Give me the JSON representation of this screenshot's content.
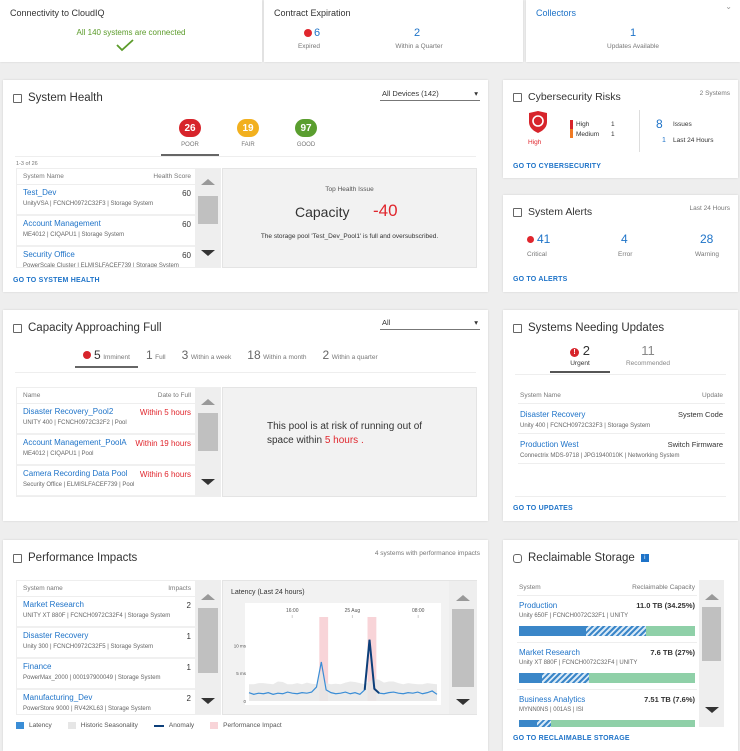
{
  "connectivity": {
    "title": "Connectivity to CloudIQ",
    "message": "All 140 systems are connected",
    "icon": "check-icon"
  },
  "contract": {
    "title": "Contract Expiration",
    "expired_count": "6",
    "expired_label": "Expired",
    "quarter_count": "2",
    "quarter_label": "Within a Quarter"
  },
  "collectors": {
    "title": "Collectors",
    "count": "1",
    "label": "Updates Available"
  },
  "health": {
    "title": "System Health",
    "filter": "All Devices (142)",
    "tabs": [
      {
        "count": "26",
        "label": "POOR",
        "color": "#d7242b"
      },
      {
        "count": "19",
        "label": "FAIR",
        "color": "#f2b01e"
      },
      {
        "count": "97",
        "label": "GOOD",
        "color": "#5a9e2f"
      }
    ],
    "range": "1-3 of 26",
    "col_name": "System Name",
    "col_score": "Health Score",
    "rows": [
      {
        "name": "Test_Dev",
        "sub": "UnityVSA | FCNCH0972C32F3 | Storage System",
        "score": "60"
      },
      {
        "name": "Account Management",
        "sub": "ME4012 | CIQAPU1 | Storage System",
        "score": "60"
      },
      {
        "name": "Security Office",
        "sub": "PowerScale Cluster | ELMISLFACEF739 | Storage System",
        "score": "60"
      }
    ],
    "issue_label": "Top Health Issue",
    "issue_name": "Capacity",
    "issue_score": "-40",
    "issue_desc": "The storage pool 'Test_Dev_Pool1' is full and oversubscribed.",
    "link": "GO TO SYSTEM HEALTH"
  },
  "cyber": {
    "title": "Cybersecurity Risks",
    "systems": "2 Systems",
    "level": "High",
    "high_label": "High",
    "high_count": "1",
    "medium_label": "Medium",
    "medium_count": "1",
    "issues_count": "8",
    "issues_label": "Issues",
    "last_count": "1",
    "last_label": "Last 24 Hours",
    "link": "GO TO CYBERSECURITY"
  },
  "alerts": {
    "title": "System Alerts",
    "period": "Last 24 Hours",
    "critical": "41",
    "critical_label": "Critical",
    "error": "4",
    "error_label": "Error",
    "warning": "28",
    "warning_label": "Warning",
    "link": "GO TO ALERTS"
  },
  "capacity": {
    "title": "Capacity Approaching Full",
    "filter": "All",
    "tabs": [
      {
        "count": "5",
        "label": "Imminent"
      },
      {
        "count": "1",
        "label": "Full"
      },
      {
        "count": "3",
        "label": "Within a week"
      },
      {
        "count": "18",
        "label": "Within a month"
      },
      {
        "count": "2",
        "label": "Within a quarter"
      }
    ],
    "col_name": "Name",
    "col_date": "Date to Full",
    "rows": [
      {
        "name": "Disaster Recovery_Pool2",
        "sub": "UNITY 400 | FCNCH0972C32F2 | Pool",
        "date": "Within 5 hours"
      },
      {
        "name": "Account Management_PoolA",
        "sub": "ME4012 | CIQAPU1 | Pool",
        "date": "Within 19 hours"
      },
      {
        "name": "Camera Recording Data Pool",
        "sub": "Security Office | ELMISLFACEF739 | Pool",
        "date": "Within 6 hours"
      }
    ],
    "msg_pre": "This pool is at risk of running out of space within",
    "msg_hl": "5 hours",
    "msg_post": "."
  },
  "updates": {
    "title": "Systems Needing Updates",
    "urgent_count": "2",
    "urgent_label": "Urgent",
    "rec_count": "11",
    "rec_label": "Recommended",
    "col_name": "System Name",
    "col_update": "Update",
    "rows": [
      {
        "name": "Disaster Recovery",
        "sub": "Unity 400 | FCNCH0972C32F3 | Storage System",
        "update": "System Code"
      },
      {
        "name": "Production West",
        "sub": "Connectrix MDS-9718 | JPG1940010K | Networking System",
        "update": "Switch Firmware"
      }
    ],
    "link": "GO TO UPDATES"
  },
  "perf": {
    "title": "Performance Impacts",
    "summary": "4 systems with performance impacts",
    "col_name": "System name",
    "col_impacts": "Impacts",
    "rows": [
      {
        "name": "Market Research",
        "sub": "UNITY XT 880F | FCNCH0972C32F4 | Storage System",
        "impacts": "2"
      },
      {
        "name": "Disaster Recovery",
        "sub": "Unity 300 | FCNCH0972C32F5 | Storage System",
        "impacts": "1"
      },
      {
        "name": "Finance",
        "sub": "PowerMax_2000 | 000197900049 | Storage System",
        "impacts": "1"
      },
      {
        "name": "Manufacturing_Dev",
        "sub": "PowerStore 9000 | RV42KL63 | Storage System",
        "impacts": "2"
      }
    ],
    "legend": [
      {
        "label": "Latency",
        "color": "#3a8dd6"
      },
      {
        "label": "Historic Seasonality",
        "color": "#e6e6e6"
      },
      {
        "label": "Anomaly",
        "color": "#0d3f7a"
      },
      {
        "label": "Performance Impact",
        "color": "#f8d4d8"
      }
    ]
  },
  "chart_data": {
    "type": "line",
    "title": "Latency (Last 24 hours)",
    "x_ticks": [
      "16:00",
      "25 Aug",
      "08:00"
    ],
    "y_ticks": [
      "0",
      "5 ms",
      "10 ms"
    ],
    "ylim": [
      0,
      14
    ],
    "grid": false,
    "legend_placement": "bottom",
    "series": [
      {
        "name": "Latency",
        "values": [
          1.5,
          1.2,
          1.4,
          1.3,
          1.5,
          1.2,
          1.4,
          1.3,
          1.6,
          1.4,
          1.3,
          1.5,
          1.4,
          1.6,
          2.5,
          7,
          2,
          1.5,
          1.3,
          1.4,
          1.6,
          1.3,
          1.5,
          1.2,
          2,
          11,
          2.2,
          1.4,
          1.3,
          1.5,
          1.6,
          1.4,
          1.3,
          1.5,
          1.4,
          1.6,
          1.3,
          1.5,
          1.8,
          1.2
        ]
      },
      {
        "name": "Historic Seasonality",
        "values": [
          3,
          3,
          3.2,
          3.2,
          3.1,
          3,
          3.5,
          3.4,
          3,
          3,
          3.2,
          3,
          3.3,
          3.1,
          3,
          5.5,
          3.2,
          3,
          3.1,
          3,
          3.3,
          3.5,
          3.4,
          3.2,
          3,
          3.5,
          4,
          3.8,
          3.3,
          3.5,
          3.5,
          3.2,
          3,
          3.2,
          3.1,
          3,
          3,
          3.2,
          3.1,
          3
        ]
      }
    ],
    "impact_windows": [
      [
        15,
        16
      ],
      [
        25,
        26
      ]
    ]
  },
  "reclaim": {
    "title": "Reclaimable Storage",
    "col_system": "System",
    "col_cap": "Reclaimable Capacity",
    "rows": [
      {
        "name": "Production",
        "sub": "Unity 650F | FCNCH0072C32F1 | UNITY",
        "value": "11.0 TB (34.25%)",
        "solid": 38,
        "hatched": 34
      },
      {
        "name": "Market Research",
        "sub": "Unity XT 880F | FCNCH0072C32F4 | UNITY",
        "value": "7.6 TB (27%)",
        "solid": 13,
        "hatched": 27
      },
      {
        "name": "Business Analytics",
        "sub": "MYNN0NS | 001AS | ISI",
        "value": "7.51 TB (7.6%)",
        "solid": 10,
        "hatched": 8
      }
    ],
    "link": "GO TO RECLAIMABLE STORAGE"
  }
}
